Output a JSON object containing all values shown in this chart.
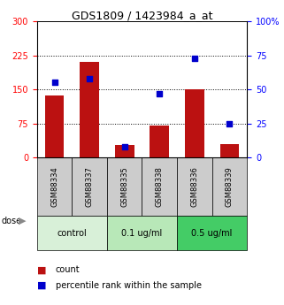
{
  "title": "GDS1809 / 1423984_a_at",
  "samples": [
    "GSM88334",
    "GSM88337",
    "GSM88335",
    "GSM88338",
    "GSM88336",
    "GSM88339"
  ],
  "count_values": [
    137,
    210,
    28,
    70,
    150,
    30
  ],
  "percentile_values": [
    55,
    58,
    8,
    47,
    73,
    25
  ],
  "left_ylim": [
    0,
    300
  ],
  "right_ylim": [
    0,
    100
  ],
  "left_yticks": [
    0,
    75,
    150,
    225,
    300
  ],
  "right_yticks": [
    0,
    25,
    50,
    75,
    100
  ],
  "right_yticklabels": [
    "0",
    "25",
    "50",
    "75",
    "100%"
  ],
  "bar_color": "#bb1111",
  "dot_color": "#0000cc",
  "bar_width": 0.55,
  "group_defs": [
    {
      "start": 0,
      "end": 2,
      "label": "control",
      "color": "#d8f0d8"
    },
    {
      "start": 2,
      "end": 4,
      "label": "0.1 ug/ml",
      "color": "#b8e8b8"
    },
    {
      "start": 4,
      "end": 6,
      "label": "0.5 ug/ml",
      "color": "#44cc66"
    }
  ],
  "legend_items": [
    "count",
    "percentile rank within the sample"
  ],
  "title_fontsize": 9,
  "tick_fontsize": 7,
  "sample_fontsize": 6,
  "group_fontsize": 7,
  "legend_fontsize": 7
}
